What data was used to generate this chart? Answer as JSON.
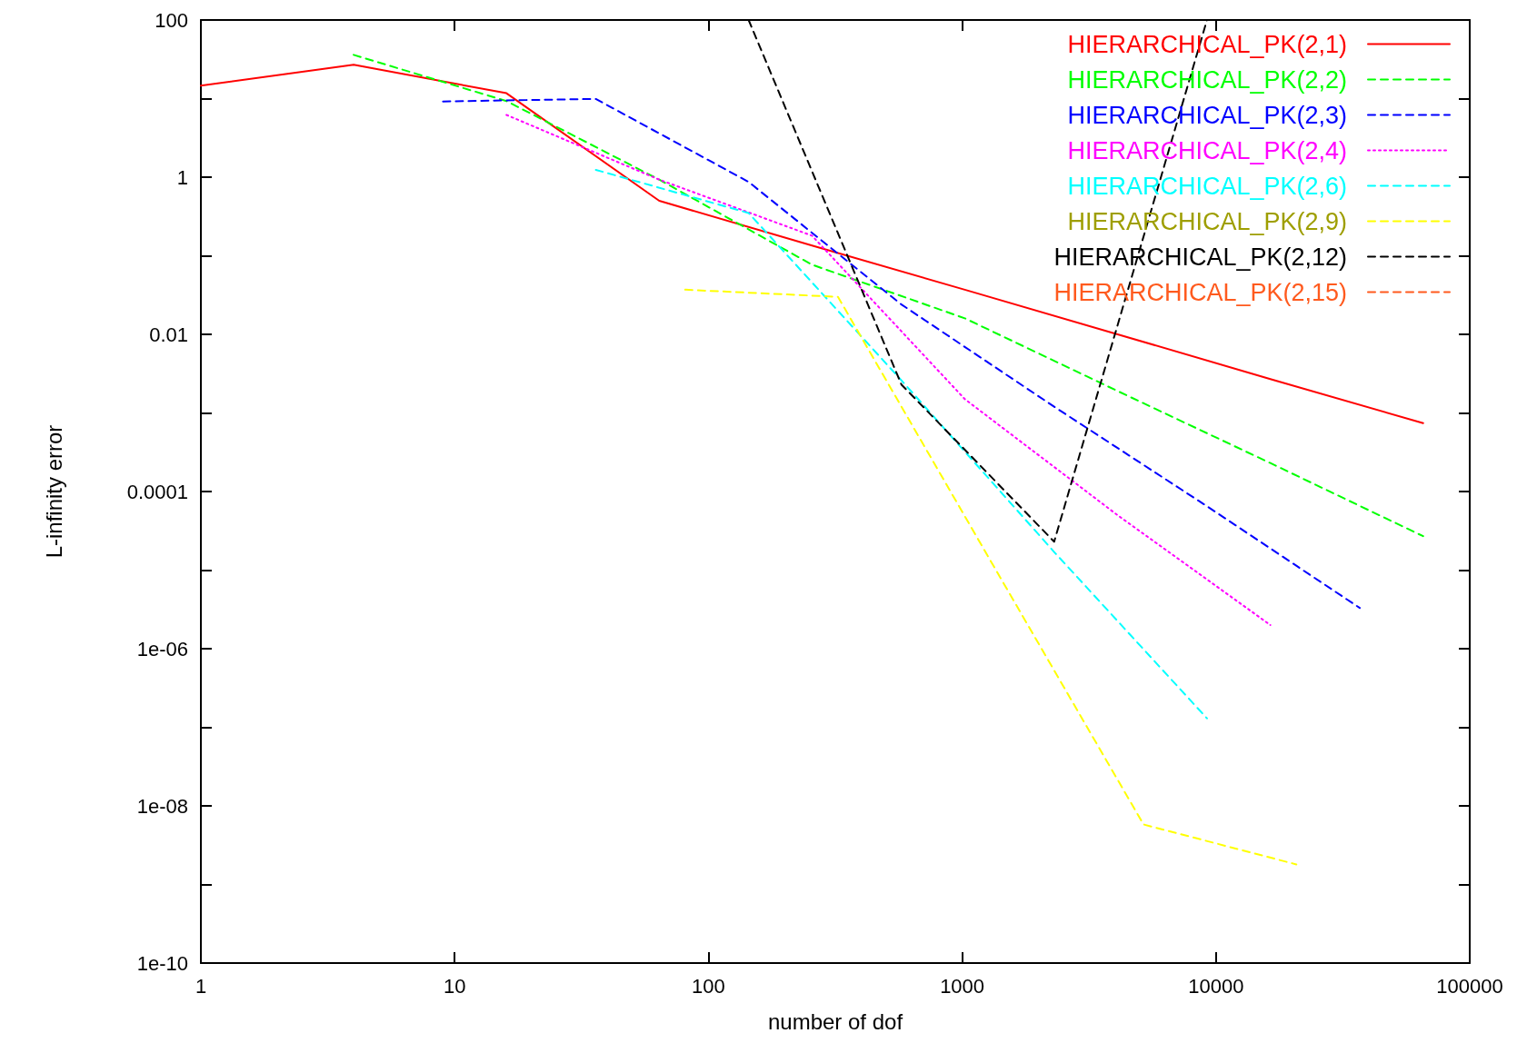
{
  "chart_data": {
    "type": "line",
    "xlabel": "number of dof",
    "ylabel": "L-infinity error",
    "log": "xy",
    "grid": false,
    "legend": "top right",
    "marker": "none",
    "xlim": [
      1,
      100000
    ],
    "xticks": [
      1,
      10,
      100,
      1000,
      10000,
      100000
    ],
    "ylim": [
      1e-10,
      100
    ],
    "yticks": [
      {
        "value": 1e-10,
        "label": "1e-10"
      },
      {
        "value": 1e-09,
        "label": null
      },
      {
        "value": 1e-08,
        "label": "1e-08"
      },
      {
        "value": 1e-07,
        "label": null
      },
      {
        "value": 1e-06,
        "label": "1e-06"
      },
      {
        "value": 1e-05,
        "label": null
      },
      0.0001,
      {
        "value": 0.001,
        "label": null
      },
      0.01,
      {
        "value": 0.1,
        "label": null
      },
      1,
      {
        "value": 10,
        "label": null
      },
      100
    ],
    "series": [
      {
        "name": "HIERARCHICAL_PK(2,1)",
        "color": "#ff0000",
        "line_style": "solid",
        "x": [
          1,
          4,
          16,
          64,
          256,
          1024,
          4096,
          16384,
          65536
        ],
        "values": [
          14.6,
          27,
          11.7,
          0.5,
          0.135,
          0.037,
          0.01,
          0.0027,
          0.00074
        ]
      },
      {
        "name": "HIERARCHICAL_PK(2,2)",
        "color": "#00ff00",
        "line_style": "dashed",
        "x": [
          4,
          16,
          64,
          256,
          1024,
          4096,
          16384,
          65536
        ],
        "values": [
          36,
          9.3,
          0.93,
          0.077,
          0.016,
          0.0019,
          0.00023,
          2.7e-05
        ]
      },
      {
        "name": "HIERARCHICAL_PK(2,3)",
        "color": "#0000ff",
        "line_style": "dashed",
        "x": [
          9,
          36,
          144,
          576,
          2304,
          9216,
          36864
        ],
        "values": [
          9.2,
          9.9,
          0.87,
          0.024,
          0.0012,
          6.5e-05,
          3.3e-06
        ]
      },
      {
        "name": "HIERARCHICAL_PK(2,4)",
        "color": "#ff00ff",
        "line_style": "dotted",
        "x": [
          16,
          64,
          256,
          1024,
          4096,
          16384
        ],
        "values": [
          6.2,
          0.93,
          0.18,
          0.0015,
          5e-05,
          2e-06
        ]
      },
      {
        "name": "HIERARCHICAL_PK(2,6)",
        "color": "#00ffff",
        "line_style": "dashed",
        "x": [
          36,
          144,
          576,
          2304,
          9216
        ],
        "values": [
          1.24,
          0.35,
          0.0026,
          1.7e-05,
          1.3e-07
        ]
      },
      {
        "name": "HIERARCHICAL_PK(2,9)",
        "color": "#ffff00",
        "line_style": "dashed",
        "x": [
          81,
          324,
          1296,
          5184,
          20736
        ],
        "values": [
          0.037,
          0.03,
          1.3e-05,
          5.8e-09,
          1.8e-09
        ]
      },
      {
        "name": "HIERARCHICAL_PK(2,12)",
        "color": "#000000",
        "line_style": "dashed",
        "x": [
          144,
          576,
          2304,
          9216
        ],
        "values": [
          100,
          0.0023,
          2.3e-05,
          100
        ]
      },
      {
        "name": "HIERARCHICAL_PK(2,15)",
        "color": "#ff5a1e",
        "line_style": "dashed"
      }
    ]
  }
}
